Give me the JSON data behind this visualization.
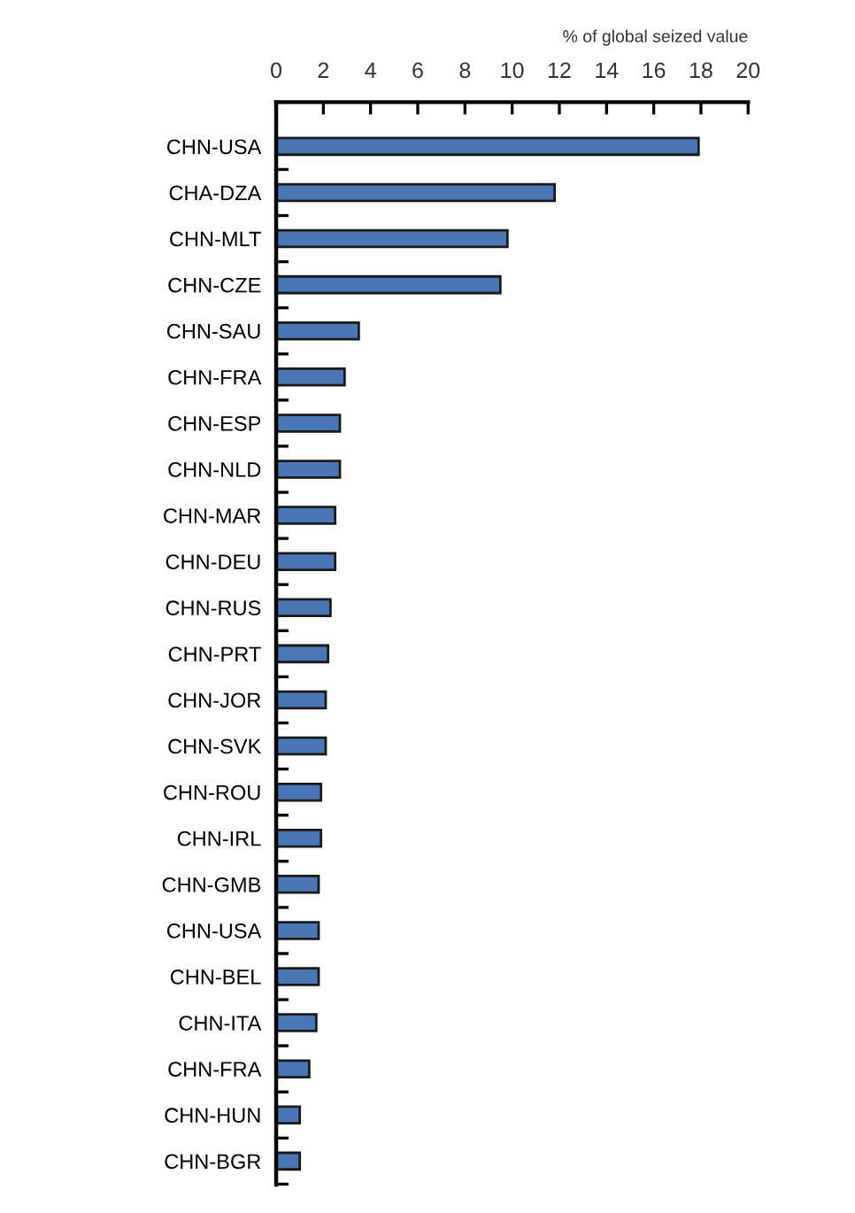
{
  "chart_data": {
    "type": "bar",
    "orientation": "horizontal",
    "xlabel": "% of global seized value",
    "categories": [
      "CHN-USA",
      "CHA-DZA",
      "CHN-MLT",
      "CHN-CZE",
      "CHN-SAU",
      "CHN-FRA",
      "CHN-ESP",
      "CHN-NLD",
      "CHN-MAR",
      "CHN-DEU",
      "CHN-RUS",
      "CHN-PRT",
      "CHN-JOR",
      "CHN-SVK",
      "CHN-ROU",
      "CHN-IRL",
      "CHN-GMB",
      "CHN-USA",
      "CHN-BEL",
      "CHN-ITA",
      "CHN-FRA",
      "CHN-HUN",
      "CHN-BGR"
    ],
    "values": [
      17.9,
      11.8,
      9.8,
      9.5,
      3.5,
      2.9,
      2.7,
      2.7,
      2.5,
      2.5,
      2.3,
      2.2,
      2.1,
      2.1,
      1.9,
      1.9,
      1.8,
      1.8,
      1.8,
      1.7,
      1.4,
      1.0,
      1.0
    ],
    "color": "#4a77b4",
    "xlim": [
      0,
      20
    ],
    "xticks": [
      0,
      2,
      4,
      6,
      8,
      10,
      12,
      14,
      16,
      18,
      20
    ],
    "grid": false
  }
}
